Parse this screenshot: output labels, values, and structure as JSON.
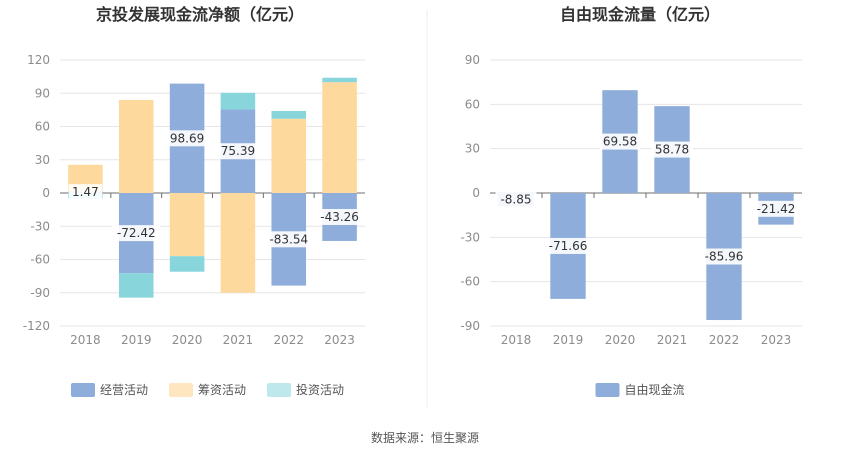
{
  "source_text": "数据来源：恒生聚源",
  "chart_data": [
    {
      "type": "bar",
      "stacked": true,
      "title": "京投发展现金流净额（亿元）",
      "categories": [
        "2018",
        "2019",
        "2020",
        "2021",
        "2022",
        "2023"
      ],
      "ylim": [
        -120,
        120
      ],
      "yticks": [
        120,
        90,
        60,
        30,
        0,
        -30,
        -60,
        -90,
        -120
      ],
      "grid": true,
      "legend_position": "bottom",
      "series": [
        {
          "name": "经营活动",
          "color": "#8fadda",
          "values": [
            1.47,
            -72.42,
            98.69,
            75.39,
            -83.54,
            -43.26
          ]
        },
        {
          "name": "筹资活动",
          "color": "#fed99e",
          "values": [
            24,
            84,
            -57,
            -90,
            67,
            100
          ]
        },
        {
          "name": "投资活动",
          "color": "#88d6dc",
          "values": [
            -5,
            -22,
            -14,
            15,
            7,
            4
          ]
        }
      ],
      "data_labels": [
        "1.47",
        "-72.42",
        "98.69",
        "75.39",
        "-83.54",
        "-43.26"
      ]
    },
    {
      "type": "bar",
      "title": "自由现金流量（亿元）",
      "categories": [
        "2018",
        "2019",
        "2020",
        "2021",
        "2022",
        "2023"
      ],
      "ylim": [
        -90,
        90
      ],
      "yticks": [
        90,
        60,
        30,
        0,
        -30,
        -60,
        -90
      ],
      "grid": true,
      "legend_position": "bottom",
      "series": [
        {
          "name": "自由现金流",
          "color": "#8fadda",
          "values": [
            -8.85,
            -71.66,
            69.58,
            58.78,
            -85.96,
            -21.42
          ]
        }
      ],
      "data_labels": [
        "-8.85",
        "-71.66",
        "69.58",
        "58.78",
        "-85.96",
        "-21.42"
      ]
    }
  ]
}
